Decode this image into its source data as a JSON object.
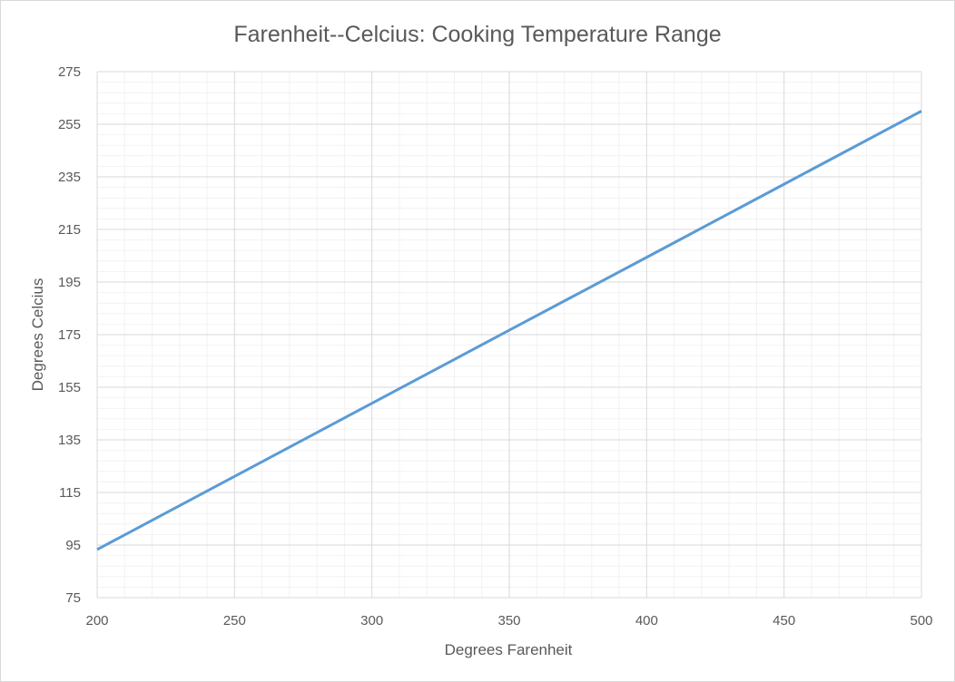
{
  "chart_data": {
    "type": "line",
    "title": "Farenheit--Celcius: Cooking Temperature Range",
    "xlabel": "Degrees Farenheit",
    "ylabel": "Degrees Celcius",
    "xlim": [
      200,
      500
    ],
    "ylim": [
      75,
      275
    ],
    "x_ticks": [
      "200",
      "250",
      "300",
      "350",
      "400",
      "450",
      "500"
    ],
    "y_ticks": [
      "75",
      "95",
      "115",
      "135",
      "155",
      "175",
      "195",
      "215",
      "235",
      "255",
      "275"
    ],
    "grid": true,
    "legend": "none",
    "series": [
      {
        "color": "#5b9bd5",
        "x": [
          200,
          250,
          300,
          350,
          400,
          450,
          500
        ],
        "y": [
          93.3,
          121.1,
          148.9,
          176.7,
          204.4,
          232.2,
          260.0
        ]
      }
    ]
  }
}
